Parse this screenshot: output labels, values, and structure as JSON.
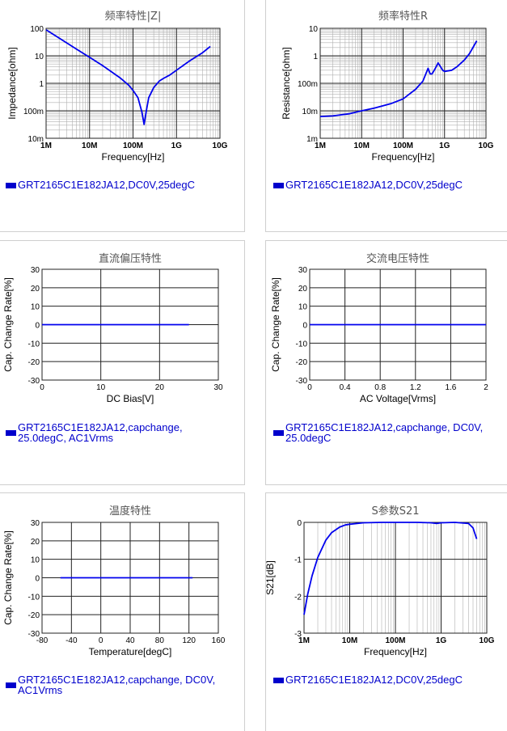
{
  "chart_data": [
    {
      "id": "c1",
      "type": "line",
      "title": "频率特性|Z|",
      "xlabel": "Frequency[Hz]",
      "ylabel": "Impedance[ohm]",
      "xscale": "log",
      "yscale": "log",
      "xlim": [
        1000000,
        10000000000
      ],
      "ylim": [
        0.01,
        100
      ],
      "xticks": [
        "1M",
        "10M",
        "100M",
        "1G",
        "10G"
      ],
      "yticks": [
        "100",
        "10",
        "1",
        "100m",
        "10m"
      ],
      "grid": true,
      "series": [
        {
          "name": "GRT2165C1E182JA12,DC0V,25degC",
          "color": "#0000ee",
          "x": [
            1000000.0,
            2000000.0,
            5000000.0,
            10000000.0,
            20000000.0,
            50000000.0,
            80000000.0,
            100000000.0,
            130000000.0,
            160000000.0,
            180000000.0,
            200000000.0,
            230000000.0,
            300000000.0,
            400000000.0,
            500000000.0,
            700000000.0,
            1000000000.0,
            2000000000.0,
            4000000000.0,
            6000000000.0
          ],
          "y": [
            88,
            44,
            17.5,
            8.8,
            4.4,
            1.6,
            0.85,
            0.55,
            0.3,
            0.09,
            0.032,
            0.09,
            0.3,
            0.7,
            1.2,
            1.5,
            2.0,
            3.0,
            6.5,
            13,
            22
          ]
        }
      ]
    },
    {
      "id": "c2",
      "type": "line",
      "title": "频率特性R",
      "xlabel": "Frequency[Hz]",
      "ylabel": "Resistance[ohm]",
      "xscale": "log",
      "yscale": "log",
      "xlim": [
        1000000,
        10000000000
      ],
      "ylim": [
        0.001,
        10
      ],
      "xticks": [
        "1M",
        "10M",
        "100M",
        "1G",
        "10G"
      ],
      "yticks": [
        "10",
        "1",
        "100m",
        "10m",
        "1m"
      ],
      "grid": true,
      "series": [
        {
          "name": "GRT2165C1E182JA12,DC0V,25degC",
          "color": "#0000ee",
          "x": [
            1000000.0,
            2000000.0,
            5000000.0,
            10000000.0,
            20000000.0,
            50000000.0,
            100000000.0,
            200000000.0,
            300000000.0,
            400000000.0,
            450000000.0,
            500000000.0,
            600000000.0,
            700000000.0,
            800000000.0,
            900000000.0,
            1000000000.0,
            1500000000.0,
            2000000000.0,
            3000000000.0,
            4000000000.0,
            6000000000.0
          ],
          "y": [
            0.0062,
            0.0065,
            0.0078,
            0.01,
            0.0125,
            0.018,
            0.027,
            0.06,
            0.12,
            0.35,
            0.22,
            0.22,
            0.35,
            0.55,
            0.4,
            0.3,
            0.27,
            0.3,
            0.4,
            0.7,
            1.2,
            3.5
          ]
        }
      ]
    },
    {
      "id": "c3",
      "type": "line",
      "title": "直流偏压特性",
      "xlabel": "DC Bias[V]",
      "ylabel": "Cap. Change Rate[%]",
      "xlim": [
        0,
        30
      ],
      "ylim": [
        -30,
        30
      ],
      "xticks": [
        "0",
        "10",
        "20",
        "30"
      ],
      "yticks": [
        "30",
        "20",
        "10",
        "0",
        "-10",
        "-20",
        "-30"
      ],
      "grid": true,
      "series": [
        {
          "name": "GRT2165C1E182JA12,capchange, 25.0degC, AC1Vrms",
          "color": "#0000ee",
          "x": [
            0,
            25
          ],
          "y": [
            0,
            0
          ]
        }
      ]
    },
    {
      "id": "c4",
      "type": "line",
      "title": "交流电压特性",
      "xlabel": "AC Voltage[Vrms]",
      "ylabel": "Cap. Change Rate[%]",
      "xlim": [
        0,
        2
      ],
      "ylim": [
        -30,
        30
      ],
      "xticks": [
        "0",
        "0.4",
        "0.8",
        "1.2",
        "1.6",
        "2"
      ],
      "yticks": [
        "30",
        "20",
        "10",
        "0",
        "-10",
        "-20",
        "-30"
      ],
      "grid": true,
      "series": [
        {
          "name": "GRT2165C1E182JA12,capchange, DC0V, 25.0degC",
          "color": "#0000ee",
          "x": [
            0,
            2
          ],
          "y": [
            0,
            0
          ]
        }
      ]
    },
    {
      "id": "c5",
      "type": "line",
      "title": "温度特性",
      "xlabel": "Temperature[degC]",
      "ylabel": "Cap. Change Rate[%]",
      "xlim": [
        -80,
        160
      ],
      "ylim": [
        -30,
        30
      ],
      "xticks": [
        "-80",
        "-40",
        "0",
        "40",
        "80",
        "120",
        "160"
      ],
      "yticks": [
        "30",
        "20",
        "10",
        "0",
        "-10",
        "-20",
        "-30"
      ],
      "grid": true,
      "series": [
        {
          "name": "GRT2165C1E182JA12,capchange, DC0V, AC1Vrms",
          "color": "#0000ee",
          "x": [
            -55,
            125
          ],
          "y": [
            0,
            0
          ]
        }
      ]
    },
    {
      "id": "c6",
      "type": "line",
      "title": "S参数S21",
      "xlabel": "Frequency[Hz]",
      "ylabel": "S21[dB]",
      "xscale": "log",
      "xlim": [
        1000000,
        10000000000
      ],
      "ylim": [
        -3,
        0
      ],
      "xticks": [
        "1M",
        "10M",
        "100M",
        "1G",
        "10G"
      ],
      "yticks": [
        "0",
        "-1",
        "-2",
        "-3"
      ],
      "grid": true,
      "series": [
        {
          "name": "GRT2165C1E182JA12,DC0V,25degC",
          "color": "#0000ee",
          "x": [
            1000000.0,
            1200000.0,
            1500000.0,
            2000000.0,
            3000000.0,
            4000000.0,
            6000000.0,
            8000000.0,
            10000000.0,
            20000000.0,
            50000000.0,
            100000000.0,
            300000000.0,
            600000000.0,
            800000000.0,
            1000000000.0,
            2000000000.0,
            4000000000.0,
            5000000000.0,
            6000000000.0
          ],
          "y": [
            -2.5,
            -1.95,
            -1.45,
            -0.95,
            -0.48,
            -0.28,
            -0.13,
            -0.07,
            -0.05,
            -0.01,
            0,
            0,
            0,
            -0.01,
            -0.03,
            -0.01,
            0,
            -0.03,
            -0.15,
            -0.45
          ]
        }
      ]
    }
  ],
  "legends": {
    "c1": [
      "GRT2165C1E182JA12,DC0V,25degC"
    ],
    "c2": [
      "GRT2165C1E182JA12,DC0V,25degC"
    ],
    "c3": [
      "GRT2165C1E182JA12,capchange,",
      "25.0degC, AC1Vrms"
    ],
    "c4": [
      "GRT2165C1E182JA12,capchange, DC0V,",
      "25.0degC"
    ],
    "c5": [
      "GRT2165C1E182JA12,capchange, DC0V,",
      "AC1Vrms"
    ],
    "c6": [
      "GRT2165C1E182JA12,DC0V,25degC"
    ]
  }
}
